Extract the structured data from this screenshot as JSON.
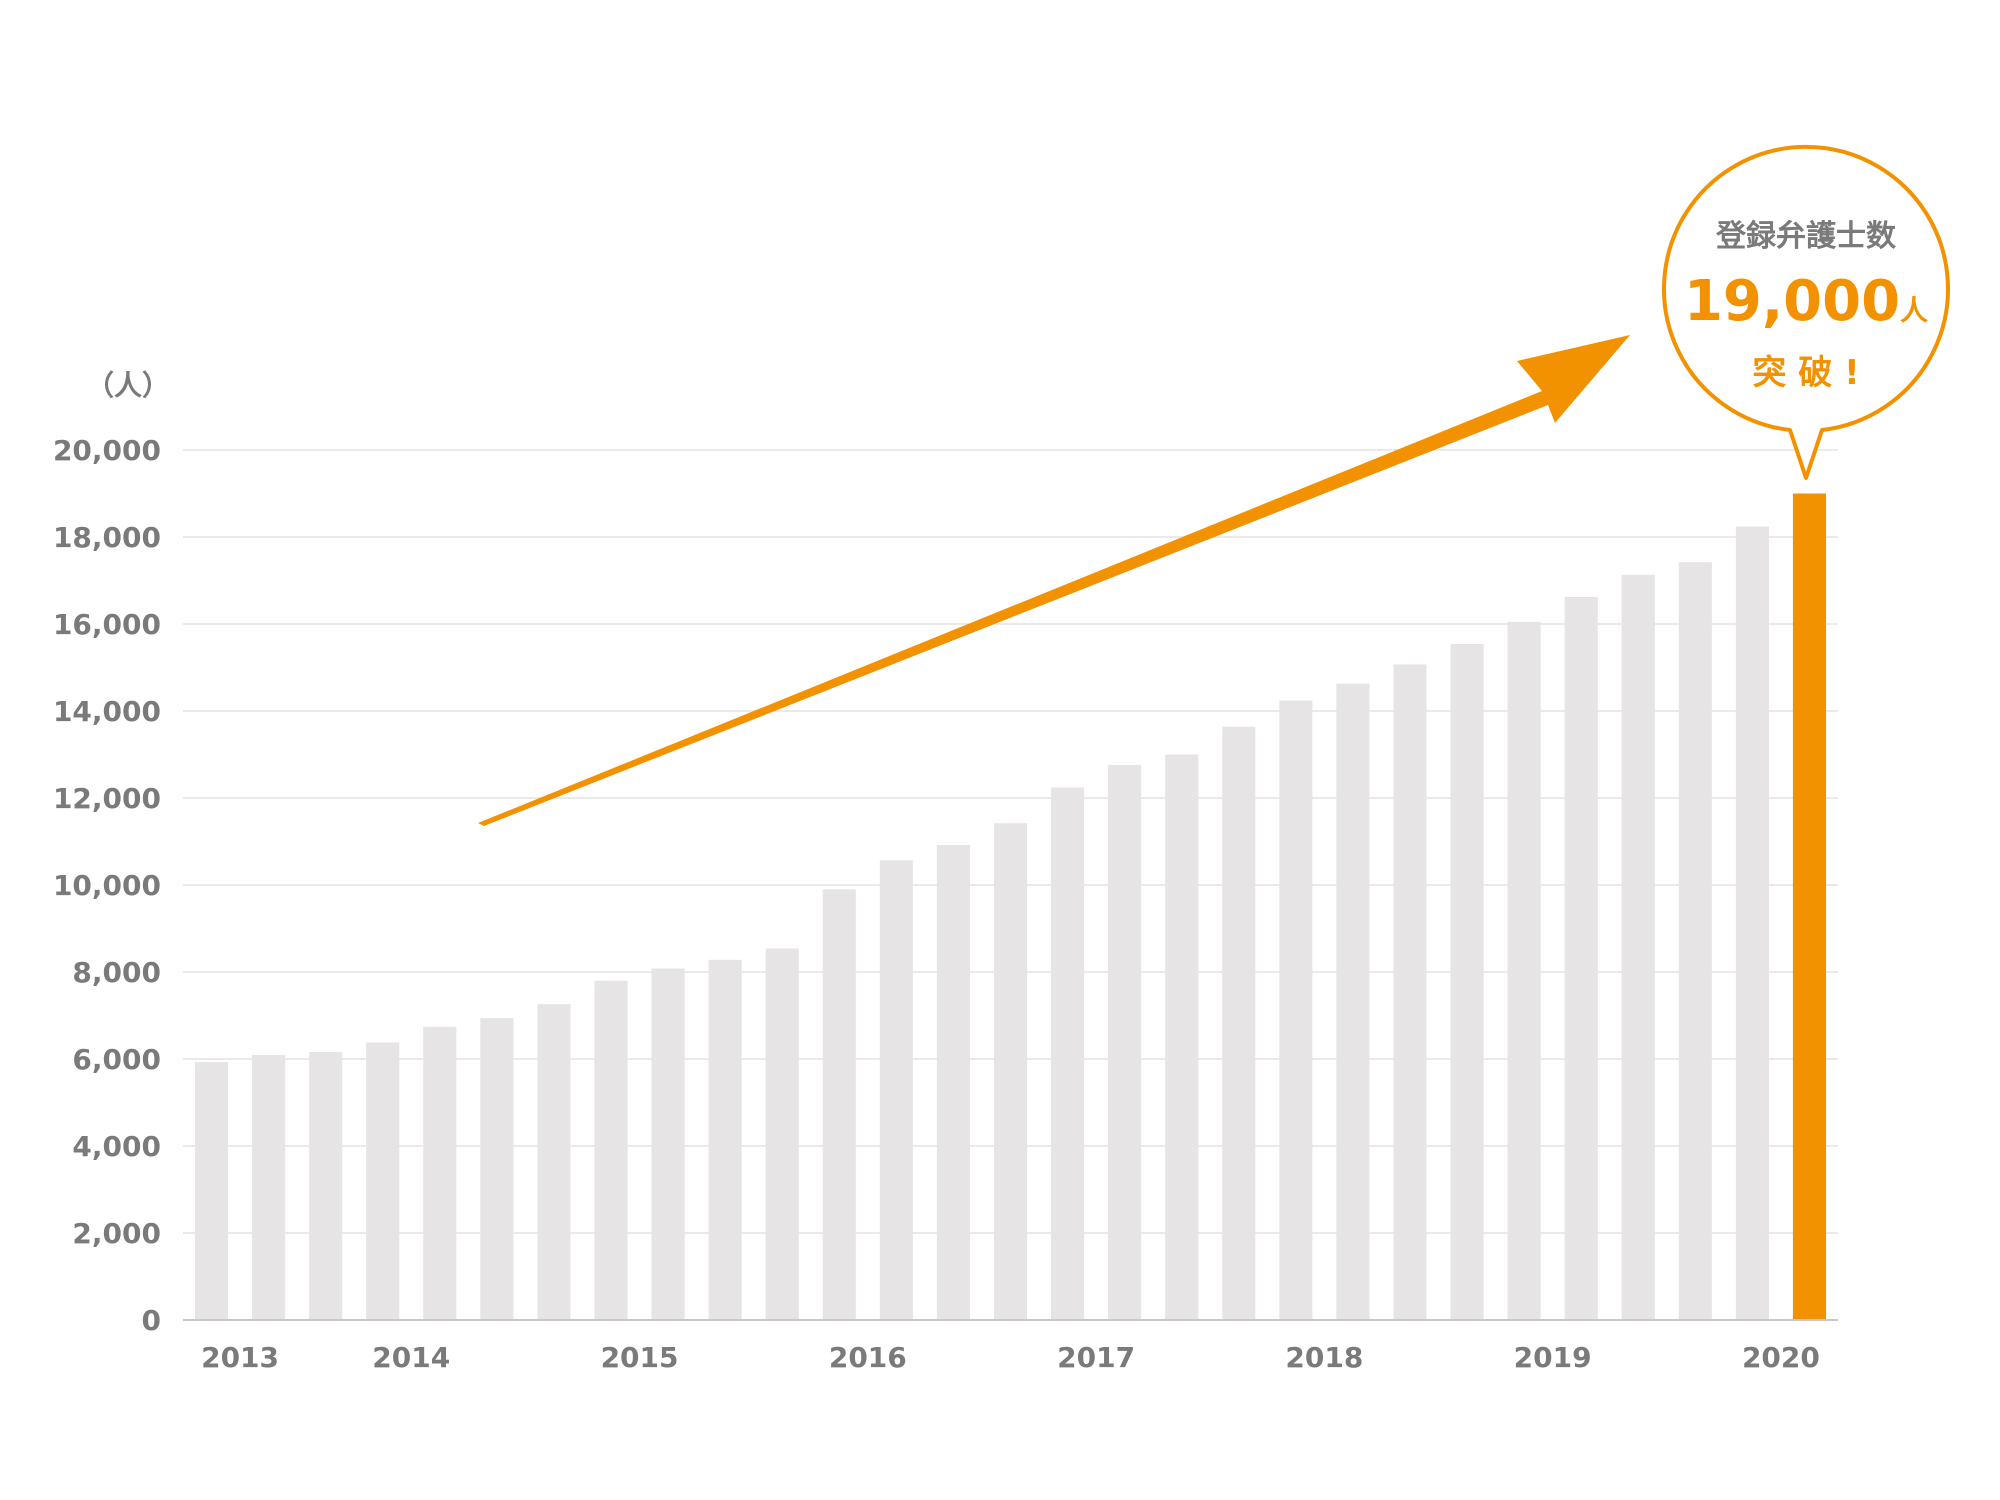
{
  "chart_data": {
    "type": "bar",
    "unit_label": "（人）",
    "ylim": [
      0,
      20000
    ],
    "y_ticks": [
      0,
      2000,
      4000,
      6000,
      8000,
      10000,
      12000,
      14000,
      16000,
      18000,
      20000
    ],
    "y_tick_labels": [
      "0",
      "2,000",
      "4,000",
      "6,000",
      "8,000",
      "10,000",
      "12,000",
      "14,000",
      "16,000",
      "18,000",
      "20,000"
    ],
    "grid": true,
    "x_labels": [
      {
        "label": "2013",
        "bar_index": 0.5
      },
      {
        "label": "2014",
        "bar_index": 3.5
      },
      {
        "label": "2015",
        "bar_index": 7.5
      },
      {
        "label": "2016",
        "bar_index": 11.5
      },
      {
        "label": "2017",
        "bar_index": 15.5
      },
      {
        "label": "2018",
        "bar_index": 19.5
      },
      {
        "label": "2019",
        "bar_index": 23.5
      },
      {
        "label": "2020",
        "bar_index": 27.5
      }
    ],
    "values": [
      5930,
      6090,
      6160,
      6380,
      6740,
      6940,
      7260,
      7800,
      8080,
      8280,
      8540,
      9900,
      10570,
      10920,
      11420,
      12240,
      12760,
      13000,
      13640,
      14240,
      14630,
      15070,
      15540,
      16050,
      16620,
      17130,
      17420,
      18240,
      19000
    ],
    "highlight_index": 28,
    "colors": {
      "bar": "#e6e4e5",
      "highlight": "#f39200",
      "grid": "#e3e3e3",
      "axis": "#c8c8c8",
      "tick_text": "#7a7a7a",
      "bubble_title": "#7a7a7a"
    },
    "callout": {
      "title": "登録弁護士数",
      "value": "19,000",
      "value_unit": "人",
      "suffix": "突 破 !"
    }
  }
}
